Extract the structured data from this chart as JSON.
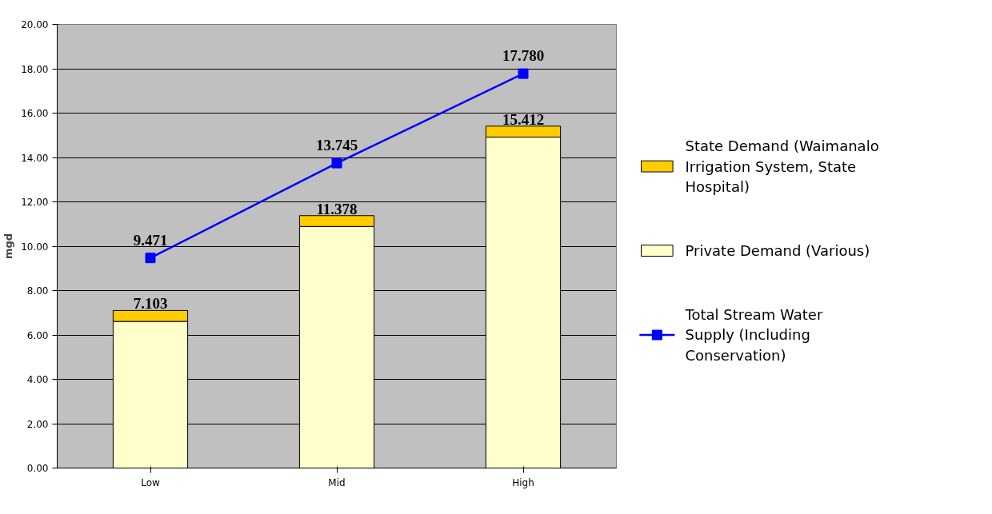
{
  "chart_data": {
    "type": "bar",
    "stacked": true,
    "ylabel": "mgd",
    "categories": [
      "Low",
      "Mid",
      "High"
    ],
    "series": [
      {
        "name": "Private Demand (Various)",
        "color": "#ffffcc",
        "values": [
          6.61,
          10.89,
          14.92
        ]
      },
      {
        "name": "State Demand (Waimanalo Irrigation System, State Hospital)",
        "color": "#ffcc00",
        "values": [
          0.493,
          0.488,
          0.492
        ]
      },
      {
        "name": "Total Stream Water Supply (Including Conservation)",
        "type": "line",
        "color": "#0000ff",
        "marker": "square",
        "values": [
          9.471,
          13.745,
          17.78
        ],
        "value_labels": [
          "9.471",
          "13.745",
          "17.780"
        ]
      }
    ],
    "totals": [
      "7.103",
      "11.378",
      "15.412"
    ],
    "ylim": [
      0,
      20
    ],
    "yticks": [
      {
        "value": 0,
        "label": "0.00"
      },
      {
        "value": 2,
        "label": "2.00"
      },
      {
        "value": 4,
        "label": "4.00"
      },
      {
        "value": 6,
        "label": "6.00"
      },
      {
        "value": 8,
        "label": "8.00"
      },
      {
        "value": 10,
        "label": "10.00"
      },
      {
        "value": 12,
        "label": "12.00"
      },
      {
        "value": 14,
        "label": "14.00"
      },
      {
        "value": 16,
        "label": "16.00"
      },
      {
        "value": 18,
        "label": "18.00"
      },
      {
        "value": 20,
        "label": "20.00"
      }
    ],
    "grid": "y",
    "legend": "right"
  }
}
